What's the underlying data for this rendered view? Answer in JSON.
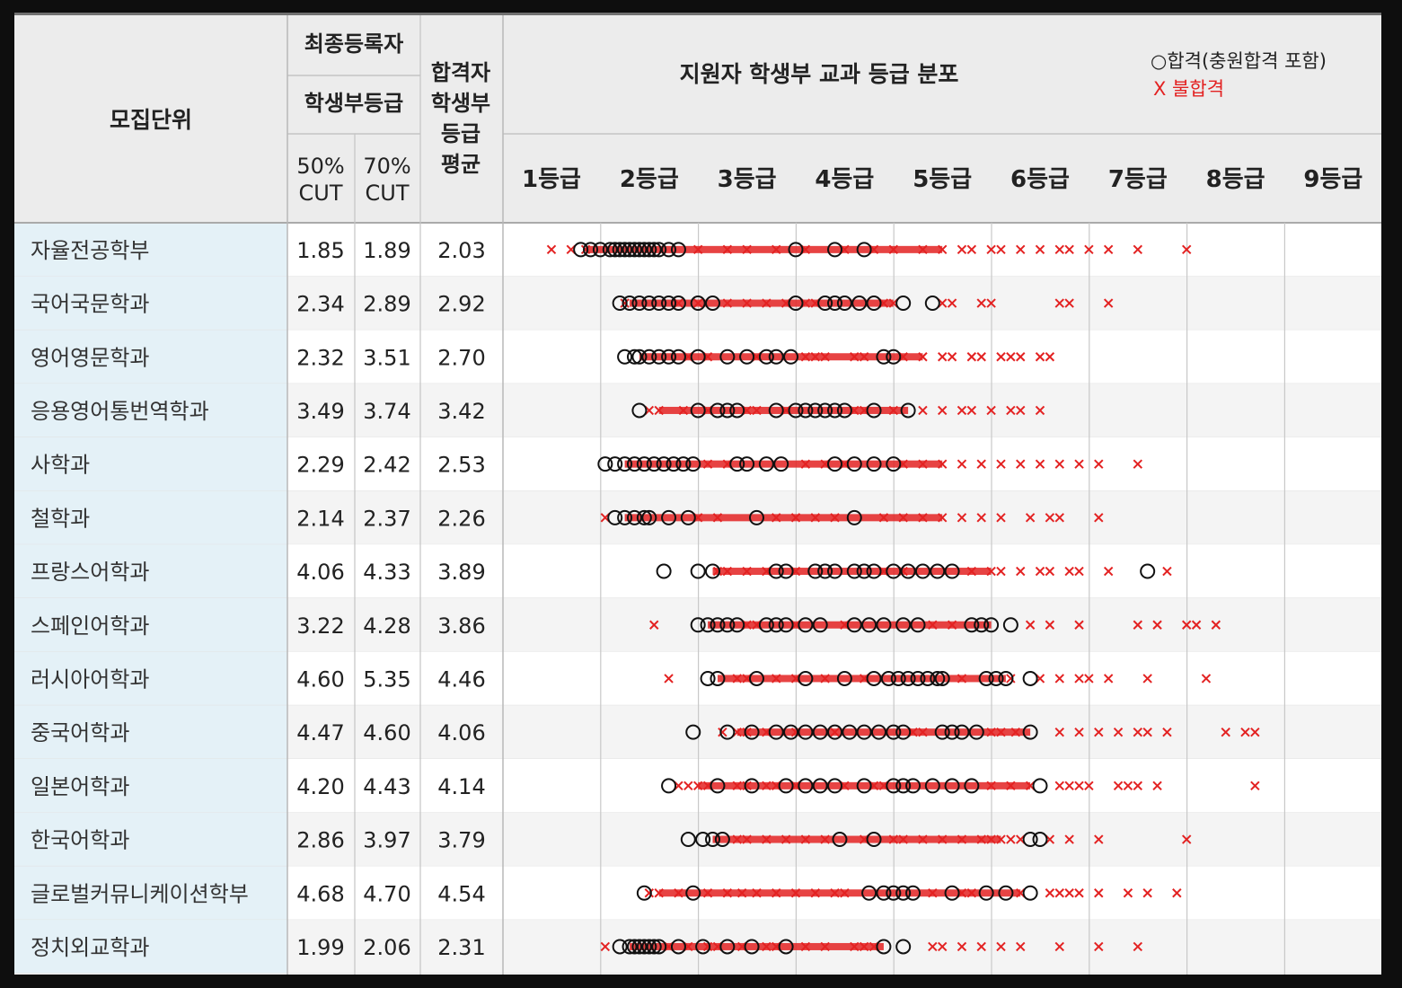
{
  "header": {
    "unit": "모집단위",
    "final_registrant": "최종등록자",
    "grade": "학생부등급",
    "cut50_pct": "50%",
    "cut50_cut": "CUT",
    "cut70_pct": "70%",
    "cut70_cut": "CUT",
    "pass_avg_l1": "합격자",
    "pass_avg_l2": "학생부",
    "pass_avg_l3": "등급",
    "pass_avg_l4": "평균",
    "dist_title": "지원자 학생부 교과 등급 분포",
    "legend_pass": "○합격(충원합격 포함)",
    "legend_fail": "X 불합격"
  },
  "colors": {
    "pass": "#111111",
    "fail": "#e32222",
    "label_bg": "#e4f1f7",
    "header_bg": "#ececec",
    "alt_row": "#f4f4f4"
  },
  "chart_data": {
    "type": "table",
    "grade_axis": [
      "1등급",
      "2등급",
      "3등급",
      "4등급",
      "5등급",
      "6등급",
      "7등급",
      "8등급",
      "9등급"
    ],
    "marker_legend": {
      "pass": "○합격(충원합격 포함)",
      "fail": "X 불합격"
    },
    "rows": [
      {
        "unit": "자율전공학부",
        "cut50": "1.85",
        "cut70": "1.89",
        "avg": "2.03",
        "pass": [
          1.3,
          1.4,
          1.5,
          1.6,
          1.65,
          1.7,
          1.75,
          1.8,
          1.85,
          1.9,
          1.95,
          2.0,
          2.05,
          2.1,
          2.2,
          2.3,
          3.5,
          3.9,
          4.2
        ],
        "fail": [
          1.0,
          1.2,
          1.35,
          2.5,
          2.8,
          3.0,
          3.3,
          3.6,
          4.0,
          4.3,
          4.5,
          4.8,
          5.0,
          5.2,
          5.3,
          5.5,
          5.6,
          5.8,
          6.0,
          6.2,
          6.3,
          6.5,
          6.7,
          7.0,
          7.5
        ]
      },
      {
        "unit": "국어국문학과",
        "cut50": "2.34",
        "cut70": "2.89",
        "avg": "2.92",
        "pass": [
          1.7,
          1.8,
          1.9,
          2.0,
          2.1,
          2.2,
          2.3,
          2.5,
          2.65,
          3.5,
          3.8,
          3.9,
          4.0,
          4.15,
          4.3,
          4.6,
          4.9
        ],
        "fail": [
          1.75,
          2.3,
          2.5,
          2.8,
          3.0,
          3.2,
          3.4,
          3.6,
          3.7,
          4.4,
          4.5,
          5.0,
          5.1,
          5.4,
          5.5,
          6.2,
          6.3,
          6.7
        ]
      },
      {
        "unit": "영어영문학과",
        "cut50": "2.32",
        "cut70": "3.51",
        "avg": "2.70",
        "pass": [
          1.75,
          1.85,
          1.9,
          2.0,
          2.1,
          2.2,
          2.3,
          2.5,
          2.8,
          3.0,
          3.2,
          3.3,
          3.45,
          4.4,
          4.5
        ],
        "fail": [
          2.4,
          2.6,
          3.1,
          3.6,
          3.7,
          3.8,
          4.1,
          4.2,
          4.6,
          4.8,
          5.0,
          5.1,
          5.3,
          5.4,
          5.6,
          5.7,
          5.8,
          6.0,
          6.1
        ]
      },
      {
        "unit": "응용영어통번역학과",
        "cut50": "3.49",
        "cut70": "3.74",
        "avg": "3.42",
        "pass": [
          1.9,
          2.5,
          2.7,
          2.8,
          2.9,
          3.3,
          3.5,
          3.6,
          3.7,
          3.8,
          3.9,
          4.0,
          4.3,
          4.65
        ],
        "fail": [
          2.0,
          2.1,
          2.35,
          2.6,
          3.0,
          3.1,
          3.4,
          4.1,
          4.2,
          4.5,
          4.8,
          5.0,
          5.2,
          5.3,
          5.5,
          5.7,
          5.8,
          6.0
        ]
      },
      {
        "unit": "사학과",
        "cut50": "2.29",
        "cut70": "2.42",
        "avg": "2.53",
        "pass": [
          1.55,
          1.65,
          1.75,
          1.85,
          1.95,
          2.05,
          2.15,
          2.25,
          2.35,
          2.45,
          2.9,
          3.0,
          3.2,
          3.35,
          3.9,
          4.1,
          4.3,
          4.5
        ],
        "fail": [
          2.6,
          2.8,
          3.6,
          3.8,
          4.0,
          4.6,
          4.8,
          5.0,
          5.2,
          5.4,
          5.6,
          5.8,
          6.0,
          6.2,
          6.4,
          6.6,
          7.0
        ]
      },
      {
        "unit": "철학과",
        "cut50": "2.14",
        "cut70": "2.37",
        "avg": "2.26",
        "pass": [
          1.65,
          1.75,
          1.85,
          1.95,
          2.0,
          2.2,
          2.4,
          3.1,
          4.1
        ],
        "fail": [
          1.55,
          2.5,
          2.7,
          3.3,
          3.5,
          3.7,
          3.9,
          4.4,
          4.6,
          4.8,
          5.0,
          5.2,
          5.4,
          5.6,
          5.9,
          6.1,
          6.2,
          6.6
        ]
      },
      {
        "unit": "프랑스어학과",
        "cut50": "4.06",
        "cut70": "4.33",
        "avg": "3.89",
        "pass": [
          2.15,
          2.5,
          2.65,
          3.3,
          3.4,
          3.7,
          3.8,
          3.9,
          4.1,
          4.2,
          4.3,
          4.5,
          4.65,
          4.8,
          4.95,
          5.1,
          7.1
        ],
        "fail": [
          2.7,
          2.8,
          3.0,
          3.2,
          3.5,
          4.4,
          4.6,
          5.3,
          5.5,
          5.6,
          5.8,
          6.0,
          6.1,
          6.3,
          6.4,
          6.7,
          7.3
        ]
      },
      {
        "unit": "스페인어학과",
        "cut50": "3.22",
        "cut70": "4.28",
        "avg": "3.86",
        "pass": [
          2.5,
          2.6,
          2.7,
          2.8,
          2.9,
          3.2,
          3.3,
          3.4,
          3.6,
          3.75,
          4.1,
          4.25,
          4.4,
          4.6,
          4.75,
          5.3,
          5.4,
          5.5,
          5.7
        ],
        "fail": [
          2.05,
          3.0,
          3.1,
          3.5,
          4.0,
          4.9,
          5.1,
          5.9,
          6.1,
          6.4,
          7.0,
          7.2,
          7.5,
          7.6,
          7.8
        ]
      },
      {
        "unit": "러시아어학과",
        "cut50": "4.60",
        "cut70": "5.35",
        "avg": "4.46",
        "pass": [
          2.6,
          2.7,
          3.1,
          3.6,
          4.0,
          4.3,
          4.45,
          4.55,
          4.65,
          4.75,
          4.85,
          4.95,
          5.0,
          5.45,
          5.55,
          5.65,
          5.9
        ],
        "fail": [
          2.2,
          2.9,
          3.0,
          3.3,
          3.5,
          3.8,
          4.2,
          5.2,
          5.7,
          6.0,
          6.2,
          6.4,
          6.5,
          6.7,
          7.1,
          7.7
        ]
      },
      {
        "unit": "중국어학과",
        "cut50": "4.47",
        "cut70": "4.60",
        "avg": "4.06",
        "pass": [
          2.45,
          2.8,
          3.05,
          3.3,
          3.45,
          3.6,
          3.75,
          3.9,
          4.05,
          4.2,
          4.35,
          4.5,
          4.6,
          5.0,
          5.1,
          5.2,
          5.35,
          5.9
        ],
        "fail": [
          2.75,
          2.9,
          3.0,
          3.2,
          3.5,
          3.9,
          4.7,
          4.8,
          5.5,
          5.6,
          5.75,
          6.2,
          6.4,
          6.6,
          6.8,
          7.0,
          7.1,
          7.3,
          7.9,
          8.1,
          8.2
        ]
      },
      {
        "unit": "일본어학과",
        "cut50": "4.20",
        "cut70": "4.43",
        "avg": "4.14",
        "pass": [
          2.2,
          2.7,
          3.05,
          3.4,
          3.6,
          3.75,
          3.9,
          4.2,
          4.5,
          4.6,
          4.7,
          4.9,
          5.1,
          5.3,
          6.0
        ],
        "fail": [
          2.3,
          2.4,
          2.5,
          2.6,
          2.9,
          3.0,
          3.2,
          3.3,
          3.5,
          4.0,
          4.3,
          4.4,
          5.5,
          5.7,
          5.9,
          6.2,
          6.3,
          6.4,
          6.5,
          6.8,
          6.9,
          7.0,
          7.2,
          8.2
        ]
      },
      {
        "unit": "한국어학과",
        "cut50": "2.86",
        "cut70": "3.97",
        "avg": "3.79",
        "pass": [
          2.4,
          2.55,
          2.65,
          2.75,
          3.95,
          4.3,
          5.9,
          6.0
        ],
        "fail": [
          2.9,
          3.0,
          3.2,
          3.4,
          3.6,
          3.8,
          4.2,
          4.5,
          4.6,
          4.8,
          5.0,
          5.2,
          5.4,
          5.5,
          5.6,
          5.7,
          5.8,
          6.1,
          6.3,
          6.6,
          7.5
        ]
      },
      {
        "unit": "글로벌커뮤니케이션학부",
        "cut50": "4.68",
        "cut70": "4.70",
        "avg": "4.54",
        "pass": [
          1.95,
          2.45,
          4.25,
          4.4,
          4.5,
          4.6,
          4.7,
          5.1,
          5.45,
          5.65,
          5.9
        ],
        "fail": [
          2.0,
          2.1,
          2.3,
          2.6,
          2.8,
          2.95,
          3.1,
          3.3,
          3.5,
          3.7,
          3.9,
          4.0,
          4.9,
          5.2,
          5.3,
          5.8,
          6.1,
          6.2,
          6.3,
          6.4,
          6.6,
          6.9,
          7.1,
          7.4
        ]
      },
      {
        "unit": "정치외교학과",
        "cut50": "1.99",
        "cut70": "2.06",
        "avg": "2.31",
        "pass": [
          1.7,
          1.8,
          1.85,
          1.9,
          1.95,
          2.0,
          2.05,
          2.1,
          2.3,
          2.55,
          2.8,
          3.05,
          3.4,
          4.4,
          4.6
        ],
        "fail": [
          1.55,
          2.2,
          2.4,
          2.6,
          2.7,
          2.95,
          3.2,
          3.3,
          3.6,
          3.8,
          4.1,
          4.2,
          4.3,
          4.9,
          5.0,
          5.2,
          5.4,
          5.6,
          5.8,
          6.2,
          6.6,
          7.0
        ]
      }
    ]
  }
}
